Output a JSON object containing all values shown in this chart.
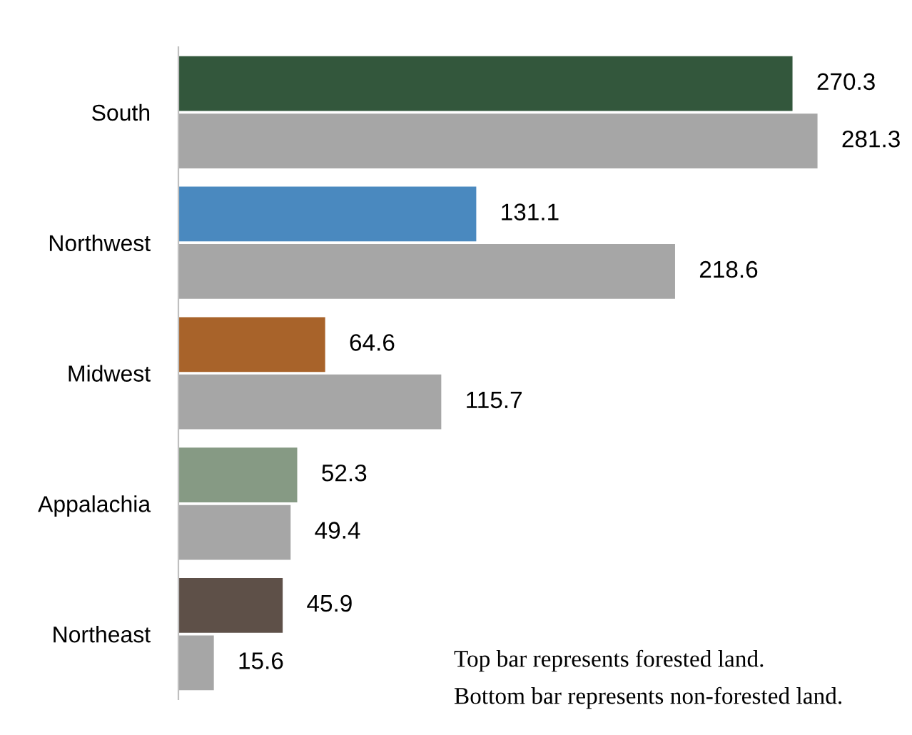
{
  "chart_data": {
    "type": "bar",
    "orientation": "horizontal",
    "categories": [
      "South",
      "Northwest",
      "Midwest",
      "Appalachia",
      "Northeast"
    ],
    "series": [
      {
        "colors": [
          "#33573c",
          "#4a89bf",
          "#a8632a",
          "#869a84",
          "#5e5048"
        ],
        "values": [
          270.3,
          131.1,
          64.6,
          52.3,
          45.9
        ]
      },
      {
        "color": "#a6a6a6",
        "values": [
          281.3,
          218.6,
          115.7,
          49.4,
          15.6
        ]
      }
    ],
    "data_labels": true,
    "tick_labels": "y",
    "grid": false,
    "legend": false,
    "annotations": [
      "Top bar represents forested land.",
      "Bottom bar represents non-forested land."
    ]
  }
}
